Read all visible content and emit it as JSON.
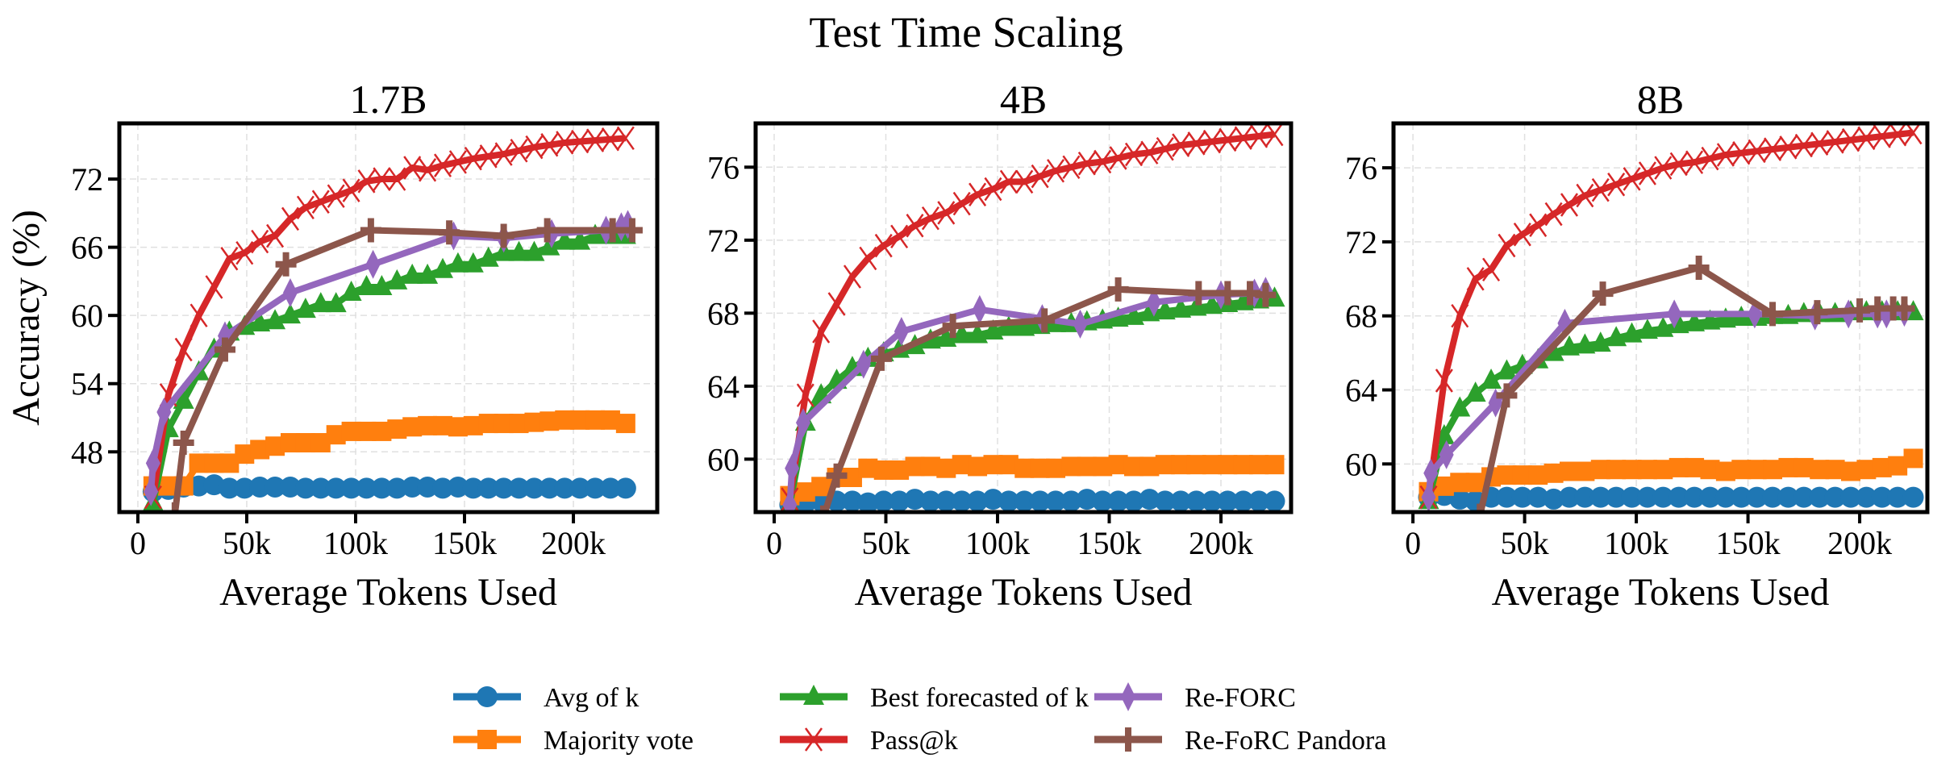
{
  "chart_data": {
    "type": "line",
    "title": "Test Time Scaling",
    "legend_position": "bottom-center",
    "legend": [
      {
        "name": "Avg of k",
        "color": "#1f77b4",
        "marker": "circle"
      },
      {
        "name": "Majority vote",
        "color": "#ff7f0e",
        "marker": "square"
      },
      {
        "name": "Best forecasted of k",
        "color": "#2ca02c",
        "marker": "triangle"
      },
      {
        "name": "Pass@k",
        "color": "#d62728",
        "marker": "x"
      },
      {
        "name": "Re-FORC",
        "color": "#9467bd",
        "marker": "thin-diamond"
      },
      {
        "name": "Re-FoRC Pandora",
        "color": "#8c564b",
        "marker": "plus"
      }
    ],
    "panels": [
      {
        "title": "1.7B",
        "xlabel": "Average Tokens Used",
        "ylabel": "Accuracy (%)",
        "xlim": [
          -8500,
          238500
        ],
        "ylim": [
          42.7,
          76.9
        ],
        "xticks": [
          0,
          50000,
          100000,
          150000,
          200000
        ],
        "xtick_labels": [
          "0",
          "50k",
          "100k",
          "150k",
          "200k"
        ],
        "yticks": [
          48,
          54,
          60,
          66,
          72
        ],
        "ytick_labels": [
          "48",
          "54",
          "60",
          "66",
          "72"
        ],
        "grid": true,
        "series": [
          {
            "name": "Avg of k",
            "x_step": 7000,
            "values": [
              44.5,
              44.7,
              44.9,
              45.0,
              45.1,
              44.8,
              44.8,
              44.9,
              44.9,
              44.9,
              44.8,
              44.8,
              44.8,
              44.8,
              44.8,
              44.8,
              44.8,
              44.9,
              44.9,
              44.8,
              44.9,
              44.8,
              44.8,
              44.8,
              44.8,
              44.8,
              44.8,
              44.8,
              44.8,
              44.8,
              44.8,
              44.8
            ]
          },
          {
            "name": "Majority vote",
            "x_step": 7000,
            "values": [
              45.0,
              45.0,
              45.0,
              47.0,
              47.0,
              47.0,
              47.8,
              48.2,
              48.5,
              48.8,
              48.8,
              48.8,
              49.5,
              49.8,
              49.8,
              49.8,
              50.0,
              50.2,
              50.3,
              50.3,
              50.2,
              50.3,
              50.5,
              50.5,
              50.5,
              50.6,
              50.7,
              50.8,
              50.8,
              50.8,
              50.8,
              50.5
            ]
          },
          {
            "name": "Best forecasted of k",
            "x_step": 7000,
            "values": [
              43.5,
              50.0,
              52.5,
              55.0,
              57.0,
              58.5,
              59.0,
              59.3,
              59.5,
              60.0,
              60.5,
              61.0,
              61.0,
              62.0,
              62.5,
              62.5,
              63.0,
              63.5,
              63.5,
              64.0,
              64.5,
              64.5,
              65.0,
              65.5,
              65.5,
              65.5,
              66.0,
              66.5,
              66.5,
              67.0,
              67.0,
              67.0
            ]
          },
          {
            "name": "Pass@k",
            "x_step": 7000,
            "values": [
              44.0,
              53.0,
              57.0,
              60.0,
              62.5,
              65.0,
              65.5,
              66.5,
              67.0,
              68.5,
              69.5,
              70.0,
              70.5,
              71.0,
              71.8,
              72.0,
              72.0,
              73.0,
              72.8,
              73.2,
              73.5,
              73.8,
              74.0,
              74.2,
              74.5,
              74.8,
              75.0,
              75.2,
              75.3,
              75.4,
              75.5,
              75.6
            ]
          },
          {
            "name": "Re-FORC",
            "x": [
              6000,
              7000,
              12000,
              40000,
              70000,
              108000,
              145000,
              168000,
              190000,
              215000,
              222000,
              225000
            ],
            "values": [
              44.5,
              47.0,
              51.5,
              58.2,
              62.0,
              64.5,
              67.0,
              66.8,
              67.2,
              67.5,
              67.8,
              68.0
            ]
          },
          {
            "name": "Re-FoRC Pandora",
            "x": [
              17000,
              21000,
              40000,
              68000,
              107000,
              143000,
              168000,
              188000,
              218000,
              227000
            ],
            "values": [
              42.5,
              48.8,
              57.0,
              64.5,
              67.5,
              67.3,
              67.0,
              67.5,
              67.5,
              67.5
            ]
          }
        ]
      },
      {
        "title": "4B",
        "xlabel": "Average Tokens Used",
        "ylabel": "",
        "xlim": [
          -8300,
          231400
        ],
        "ylim": [
          57.1,
          78.4
        ],
        "xticks": [
          0,
          50000,
          100000,
          150000,
          200000
        ],
        "xtick_labels": [
          "0",
          "50k",
          "100k",
          "150k",
          "200k"
        ],
        "yticks": [
          60,
          64,
          68,
          72,
          76
        ],
        "ytick_labels": [
          "60",
          "64",
          "68",
          "72",
          "76"
        ],
        "grid": true,
        "series": [
          {
            "name": "Avg of k",
            "x_step": 7000,
            "values": [
              57.5,
              57.6,
              57.7,
              57.7,
              57.7,
              57.6,
              57.7,
              57.7,
              57.8,
              57.7,
              57.7,
              57.7,
              57.7,
              57.8,
              57.7,
              57.7,
              57.7,
              57.7,
              57.7,
              57.8,
              57.7,
              57.7,
              57.7,
              57.8,
              57.7,
              57.7,
              57.7,
              57.7,
              57.7,
              57.7,
              57.7,
              57.7
            ]
          },
          {
            "name": "Majority vote",
            "x_step": 7000,
            "values": [
              58.0,
              58.2,
              58.5,
              59.0,
              59.0,
              59.5,
              59.4,
              59.4,
              59.6,
              59.6,
              59.5,
              59.7,
              59.6,
              59.7,
              59.7,
              59.5,
              59.5,
              59.5,
              59.6,
              59.6,
              59.6,
              59.7,
              59.6,
              59.6,
              59.7,
              59.7,
              59.7,
              59.7,
              59.7,
              59.7,
              59.7,
              59.7
            ]
          },
          {
            "name": "Best forecasted of k",
            "x_step": 7000,
            "values": [
              57.5,
              62.0,
              63.5,
              64.3,
              65.0,
              65.5,
              65.8,
              66.0,
              66.2,
              66.5,
              66.6,
              66.8,
              66.8,
              67.0,
              67.2,
              67.2,
              67.3,
              67.4,
              67.4,
              67.5,
              67.6,
              67.7,
              67.8,
              68.0,
              68.1,
              68.2,
              68.3,
              68.4,
              68.5,
              68.6,
              68.7,
              68.8
            ]
          },
          {
            "name": "Pass@k",
            "x_step": 7000,
            "values": [
              57.8,
              63.5,
              67.0,
              68.5,
              70.0,
              71.0,
              71.7,
              72.2,
              72.8,
              73.2,
              73.5,
              74.0,
              74.5,
              74.8,
              75.2,
              75.2,
              75.5,
              75.8,
              76.0,
              76.2,
              76.3,
              76.5,
              76.7,
              76.8,
              77.0,
              77.2,
              77.3,
              77.4,
              77.5,
              77.6,
              77.7,
              77.8
            ]
          },
          {
            "name": "Re-FORC",
            "x": [
              7000,
              8000,
              13000,
              40000,
              57000,
              92000,
              120000,
              137000,
              170000,
              200000,
              215000,
              220000
            ],
            "values": [
              57.5,
              59.5,
              62.0,
              65.2,
              67.0,
              68.2,
              67.7,
              67.4,
              68.6,
              69.0,
              69.1,
              69.2
            ]
          },
          {
            "name": "Re-FoRC Pandora",
            "x": [
              22000,
              28000,
              48000,
              80000,
              121000,
              154000,
              190000,
              203000,
              213000,
              220000
            ],
            "values": [
              56.8,
              59.1,
              65.5,
              67.3,
              67.6,
              69.3,
              69.1,
              69.1,
              69.1,
              69.0
            ]
          }
        ]
      },
      {
        "title": "8B",
        "xlabel": "Average Tokens Used",
        "ylabel": "",
        "xlim": [
          -8700,
          230300
        ],
        "ylim": [
          57.4,
          78.4
        ],
        "xticks": [
          0,
          50000,
          100000,
          150000,
          200000
        ],
        "xtick_labels": [
          "0",
          "50k",
          "100k",
          "150k",
          "200k"
        ],
        "yticks": [
          60,
          64,
          68,
          72,
          76
        ],
        "ytick_labels": [
          "60",
          "64",
          "68",
          "72",
          "76"
        ],
        "grid": true,
        "series": [
          {
            "name": "Avg of k",
            "x_step": 7000,
            "values": [
              58.2,
              58.3,
              58.1,
              58.0,
              58.2,
              58.2,
              58.2,
              58.2,
              58.1,
              58.2,
              58.2,
              58.2,
              58.2,
              58.2,
              58.2,
              58.2,
              58.2,
              58.2,
              58.2,
              58.2,
              58.2,
              58.2,
              58.2,
              58.2,
              58.2,
              58.2,
              58.2,
              58.2,
              58.2,
              58.2,
              58.2,
              58.2
            ]
          },
          {
            "name": "Majority vote",
            "x_step": 7000,
            "values": [
              58.5,
              58.8,
              59.0,
              59.0,
              59.3,
              59.4,
              59.4,
              59.4,
              59.5,
              59.6,
              59.6,
              59.7,
              59.7,
              59.7,
              59.7,
              59.7,
              59.8,
              59.8,
              59.7,
              59.6,
              59.7,
              59.7,
              59.7,
              59.8,
              59.8,
              59.7,
              59.7,
              59.6,
              59.7,
              59.8,
              59.9,
              60.3
            ]
          },
          {
            "name": "Best forecasted of k",
            "x_step": 7000,
            "values": [
              58.0,
              61.5,
              63.0,
              63.8,
              64.5,
              65.0,
              65.3,
              65.6,
              66.0,
              66.3,
              66.4,
              66.5,
              66.8,
              67.0,
              67.2,
              67.3,
              67.5,
              67.6,
              67.7,
              67.8,
              67.9,
              67.9,
              68.0,
              68.0,
              68.1,
              68.1,
              68.1,
              68.2,
              68.2,
              68.2,
              68.2,
              68.2
            ]
          },
          {
            "name": "Pass@k",
            "x_step": 7000,
            "values": [
              58.2,
              64.5,
              68.0,
              70.0,
              70.5,
              71.8,
              72.4,
              72.9,
              73.5,
              74.0,
              74.5,
              74.8,
              75.1,
              75.4,
              75.7,
              76.0,
              76.2,
              76.3,
              76.5,
              76.7,
              76.8,
              76.9,
              77.0,
              77.1,
              77.2,
              77.3,
              77.4,
              77.5,
              77.6,
              77.7,
              77.8,
              77.9
            ]
          },
          {
            "name": "Re-FORC",
            "x": [
              7000,
              8000,
              15000,
              37000,
              68000,
              117000,
              153000,
              180000,
              195000,
              208000,
              212000,
              220000
            ],
            "values": [
              58.2,
              59.5,
              60.5,
              63.3,
              67.6,
              68.1,
              68.1,
              68.0,
              68.1,
              68.1,
              68.1,
              68.2
            ]
          },
          {
            "name": "Re-FoRC Pandora",
            "x": [
              30000,
              42000,
              85000,
              128000,
              161000,
              181000,
              200000,
              208000,
              215000,
              220000
            ],
            "values": [
              57.2,
              63.7,
              69.2,
              70.6,
              68.1,
              68.2,
              68.3,
              68.4,
              68.4,
              68.4
            ]
          }
        ]
      }
    ]
  }
}
